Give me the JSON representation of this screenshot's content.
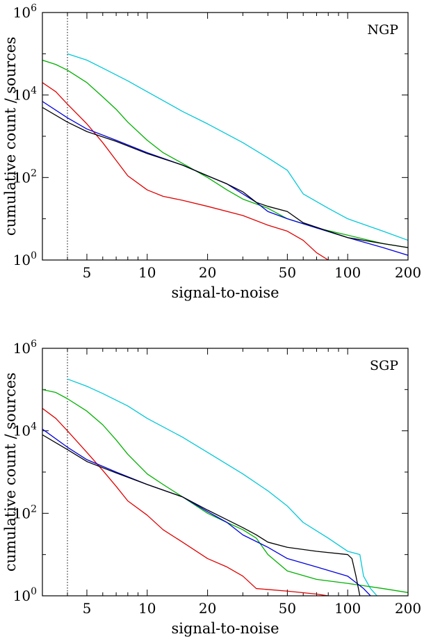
{
  "colors": {
    "cyan": "#00c8d8",
    "green": "#00b000",
    "red": "#e00000",
    "blue": "#0000e0",
    "black": "#000000"
  },
  "chart_data": [
    {
      "type": "line",
      "panel_label": "NGP",
      "xlabel": "signal-to-noise",
      "ylabel": "cumulative count / sources",
      "xscale": "log",
      "yscale": "log",
      "xlim": [
        3.0,
        200
      ],
      "ylim": [
        1,
        1000000
      ],
      "x_ticks": [
        5,
        10,
        20,
        50,
        100,
        200
      ],
      "x_tick_labels": [
        "5",
        "10",
        "20",
        "50",
        "100",
        "200"
      ],
      "y_ticks": [
        1,
        100,
        10000,
        1000000
      ],
      "y_tick_labels": [
        {
          "base": "10",
          "exp": "0"
        },
        {
          "base": "10",
          "exp": "2"
        },
        {
          "base": "10",
          "exp": "4"
        },
        {
          "base": "10",
          "exp": "6"
        }
      ],
      "threshold_x": 4.0,
      "grid": false,
      "legend": "none",
      "series": [
        {
          "color": "cyan",
          "x": [
            4.0,
            5,
            6,
            8,
            10,
            15,
            20,
            30,
            40,
            50,
            60,
            80,
            100,
            150,
            200
          ],
          "y": [
            100000,
            70000,
            45000,
            22000,
            12000,
            4000,
            2000,
            700,
            300,
            150,
            40,
            18,
            10,
            5,
            3
          ]
        },
        {
          "color": "green",
          "x": [
            3.0,
            3.5,
            4.0,
            5,
            6,
            7,
            8,
            10,
            12,
            15,
            20,
            25,
            30,
            40,
            50,
            70,
            100,
            150,
            200
          ],
          "y": [
            70000,
            55000,
            40000,
            20000,
            9000,
            4500,
            2200,
            800,
            400,
            220,
            100,
            50,
            30,
            18,
            10,
            6,
            4,
            2.5,
            2
          ]
        },
        {
          "color": "red",
          "x": [
            3.0,
            3.5,
            4.0,
            5,
            6,
            7,
            8,
            10,
            12,
            15,
            20,
            30,
            40,
            50,
            60,
            70,
            80
          ],
          "y": [
            20000,
            12000,
            6000,
            2000,
            700,
            260,
            110,
            50,
            35,
            28,
            20,
            12,
            7,
            5,
            3,
            1.5,
            1
          ]
        },
        {
          "color": "blue",
          "x": [
            3.0,
            4,
            5,
            7,
            10,
            15,
            20,
            25,
            30,
            35,
            40,
            50,
            70,
            100,
            150,
            200
          ],
          "y": [
            7000,
            2800,
            1500,
            800,
            400,
            200,
            110,
            70,
            40,
            25,
            15,
            10,
            6,
            3.5,
            2,
            1.3
          ]
        },
        {
          "color": "black",
          "x": [
            3.0,
            4,
            5,
            7,
            10,
            15,
            20,
            25,
            30,
            35,
            40,
            50,
            60,
            80,
            100,
            150,
            200
          ],
          "y": [
            5000,
            2200,
            1300,
            750,
            380,
            200,
            110,
            70,
            45,
            25,
            20,
            15,
            8,
            5,
            3.5,
            2.5,
            2
          ]
        }
      ]
    },
    {
      "type": "line",
      "panel_label": "SGP",
      "xlabel": "signal-to-noise",
      "ylabel": "cumulative count / sources",
      "xscale": "log",
      "yscale": "log",
      "xlim": [
        3.0,
        200
      ],
      "ylim": [
        1,
        1000000
      ],
      "x_ticks": [
        5,
        10,
        20,
        50,
        100,
        200
      ],
      "x_tick_labels": [
        "5",
        "10",
        "20",
        "50",
        "100",
        "200"
      ],
      "y_ticks": [
        1,
        100,
        10000,
        1000000
      ],
      "y_tick_labels": [
        {
          "base": "10",
          "exp": "0"
        },
        {
          "base": "10",
          "exp": "2"
        },
        {
          "base": "10",
          "exp": "4"
        },
        {
          "base": "10",
          "exp": "6"
        }
      ],
      "threshold_x": 4.0,
      "grid": false,
      "legend": "none",
      "series": [
        {
          "color": "cyan",
          "x": [
            4.0,
            5,
            6,
            8,
            10,
            15,
            20,
            30,
            40,
            50,
            60,
            80,
            100,
            115,
            120,
            130,
            140
          ],
          "y": [
            180000,
            120000,
            80000,
            40000,
            20000,
            7000,
            3000,
            900,
            350,
            150,
            60,
            25,
            12,
            10,
            3,
            1.5,
            1
          ]
        },
        {
          "color": "green",
          "x": [
            3.0,
            3.5,
            4.0,
            5,
            6,
            7,
            8,
            10,
            12,
            15,
            20,
            25,
            30,
            35,
            40,
            50,
            70,
            100,
            150,
            200
          ],
          "y": [
            100000,
            85000,
            60000,
            30000,
            14000,
            6000,
            2700,
            900,
            500,
            250,
            100,
            60,
            40,
            25,
            10,
            4,
            2.5,
            2,
            1.5,
            1.2
          ]
        },
        {
          "color": "red",
          "x": [
            3.0,
            3.5,
            4.0,
            5,
            6,
            7,
            8,
            10,
            12,
            15,
            20,
            25,
            30,
            35,
            50,
            70,
            80
          ],
          "y": [
            35000,
            20000,
            10000,
            3000,
            1100,
            450,
            200,
            90,
            40,
            20,
            8,
            5,
            3,
            1.5,
            1.3,
            1.1,
            1
          ]
        },
        {
          "color": "blue",
          "x": [
            3.0,
            4,
            5,
            7,
            10,
            15,
            20,
            25,
            30,
            40,
            50,
            70,
            100,
            120,
            130
          ],
          "y": [
            11000,
            4000,
            2000,
            1000,
            500,
            250,
            110,
            60,
            30,
            15,
            8,
            5,
            3,
            1.5,
            1
          ]
        },
        {
          "color": "black",
          "x": [
            3.0,
            4,
            5,
            7,
            10,
            15,
            20,
            25,
            30,
            35,
            40,
            50,
            70,
            100,
            105,
            110,
            115
          ],
          "y": [
            8000,
            3500,
            1800,
            950,
            500,
            250,
            120,
            70,
            45,
            30,
            20,
            15,
            12,
            10,
            8,
            3,
            1
          ]
        }
      ]
    }
  ]
}
